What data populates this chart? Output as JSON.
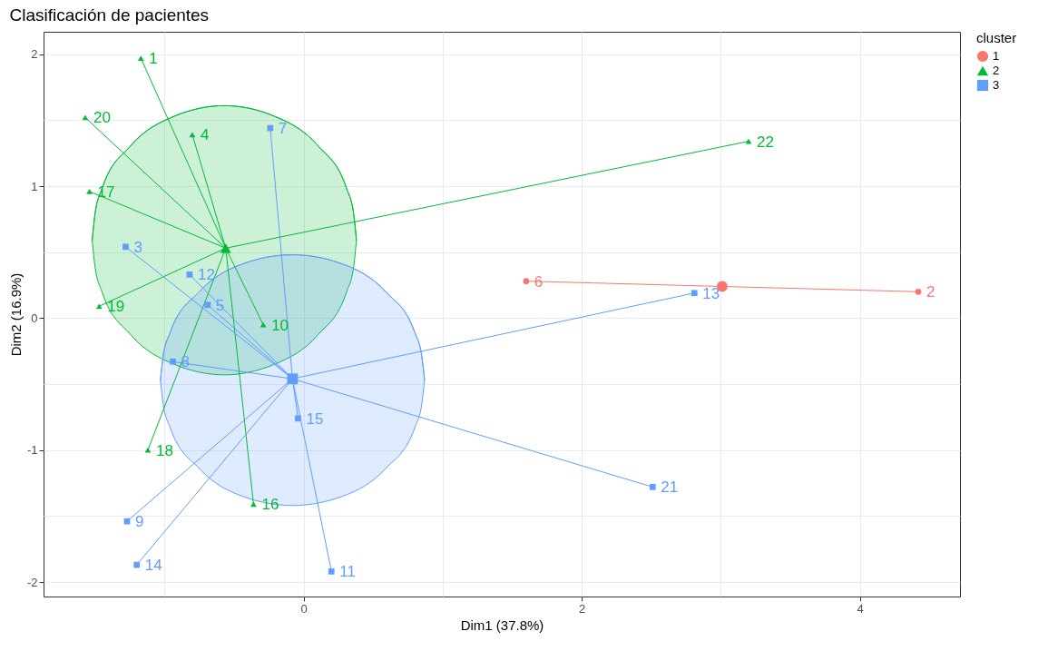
{
  "chart_data": {
    "type": "scatter",
    "title": "Clasificación de pacientes",
    "xlabel": "Dim1 (37.8%)",
    "ylabel": "Dim2 (16.9%)",
    "legend_title": "cluster",
    "legend": "right",
    "grid": true,
    "xlim": [
      -1.87,
      4.72
    ],
    "ylim": [
      -2.11,
      2.17
    ],
    "xticks": [
      {
        "value": -1,
        "label": null
      },
      0,
      {
        "value": 1,
        "label": null
      },
      2,
      {
        "value": 3,
        "label": null
      },
      4
    ],
    "yticks": [
      -2,
      {
        "value": -1.5,
        "label": null
      },
      -1,
      {
        "value": -0.5,
        "label": null
      },
      0,
      {
        "value": 0.5,
        "label": null
      },
      1,
      {
        "value": 1.5,
        "label": null
      },
      2
    ],
    "series": [
      {
        "type": "line",
        "color": "#00ba38",
        "x": [
          -1.52,
          -1.5,
          -1.45,
          -1.24,
          -0.93,
          -0.57,
          -0.21,
          0.1,
          0.31,
          0.36,
          0.38
        ],
        "values": [
          0.59,
          0.79,
          0.98,
          1.31,
          1.53,
          1.61,
          1.53,
          1.31,
          0.98,
          0.79,
          0.59
        ],
        "upper": [
          0.59,
          0.79,
          0.98,
          1.31,
          1.53,
          1.61,
          1.53,
          1.31,
          0.98,
          0.79,
          0.59
        ],
        "lower": [
          0.59,
          0.39,
          0.2,
          -0.13,
          -0.35,
          -0.43,
          -0.35,
          -0.13,
          0.2,
          0.39,
          0.59
        ]
      },
      {
        "type": "line",
        "color": "#619cff",
        "x": [
          -1.03,
          -1.01,
          -0.96,
          -0.75,
          -0.44,
          -0.08,
          0.28,
          0.59,
          0.8,
          0.85,
          0.87
        ],
        "values": [
          -0.47,
          -0.29,
          -0.11,
          0.2,
          0.41,
          0.48,
          0.41,
          0.2,
          -0.11,
          -0.29,
          -0.47
        ],
        "upper": [
          -0.47,
          -0.29,
          -0.11,
          0.2,
          0.41,
          0.48,
          0.41,
          0.2,
          -0.11,
          -0.29,
          -0.47
        ],
        "lower": [
          -0.47,
          -0.65,
          -0.83,
          -1.14,
          -1.35,
          -1.42,
          -1.35,
          -1.14,
          -0.83,
          -0.65,
          -0.47
        ]
      },
      {
        "type": "line",
        "color": "#f8766d",
        "x": [
          3.01,
          1.6
        ],
        "values": [
          0.24,
          0.28
        ]
      },
      {
        "type": "line",
        "color": "#f8766d",
        "x": [
          3.01,
          4.42
        ],
        "values": [
          0.24,
          0.2
        ]
      },
      {
        "type": "line",
        "color": "#00ba38",
        "x": [
          -0.56,
          -1.17
        ],
        "values": [
          0.53,
          1.97
        ]
      },
      {
        "type": "line",
        "color": "#00ba38",
        "x": [
          -0.56,
          -1.57
        ],
        "values": [
          0.53,
          1.52
        ]
      },
      {
        "type": "line",
        "color": "#00ba38",
        "x": [
          -0.56,
          -0.8
        ],
        "values": [
          0.53,
          1.39
        ]
      },
      {
        "type": "line",
        "color": "#00ba38",
        "x": [
          -0.56,
          3.2
        ],
        "values": [
          0.53,
          1.34
        ]
      },
      {
        "type": "line",
        "color": "#00ba38",
        "x": [
          -0.56,
          -1.54
        ],
        "values": [
          0.53,
          0.96
        ]
      },
      {
        "type": "line",
        "color": "#00ba38",
        "x": [
          -0.56,
          -1.47
        ],
        "values": [
          0.53,
          0.09
        ]
      },
      {
        "type": "line",
        "color": "#00ba38",
        "x": [
          -0.56,
          -0.29
        ],
        "values": [
          0.53,
          -0.05
        ]
      },
      {
        "type": "line",
        "color": "#00ba38",
        "x": [
          -0.56,
          -1.12
        ],
        "values": [
          0.53,
          -1.0
        ]
      },
      {
        "type": "line",
        "color": "#00ba38",
        "x": [
          -0.56,
          -0.36
        ],
        "values": [
          0.53,
          -1.41
        ]
      },
      {
        "type": "line",
        "color": "#619cff",
        "x": [
          -0.08,
          -0.24
        ],
        "values": [
          -0.46,
          1.44
        ]
      },
      {
        "type": "line",
        "color": "#619cff",
        "x": [
          -0.08,
          -1.28
        ],
        "values": [
          -0.46,
          0.54
        ]
      },
      {
        "type": "line",
        "color": "#619cff",
        "x": [
          -0.08,
          -0.82
        ],
        "values": [
          -0.46,
          0.33
        ]
      },
      {
        "type": "line",
        "color": "#619cff",
        "x": [
          -0.08,
          -0.69
        ],
        "values": [
          -0.46,
          0.1
        ]
      },
      {
        "type": "line",
        "color": "#619cff",
        "x": [
          -0.08,
          -0.94
        ],
        "values": [
          -0.46,
          -0.33
        ]
      },
      {
        "type": "line",
        "color": "#619cff",
        "x": [
          -0.08,
          2.81
        ],
        "values": [
          -0.46,
          0.19
        ]
      },
      {
        "type": "line",
        "color": "#619cff",
        "x": [
          -0.08,
          -0.04
        ],
        "values": [
          -0.46,
          -0.76
        ]
      },
      {
        "type": "line",
        "color": "#619cff",
        "x": [
          -0.08,
          2.51
        ],
        "values": [
          -0.46,
          -1.28
        ]
      },
      {
        "type": "line",
        "color": "#619cff",
        "x": [
          -0.08,
          -1.27
        ],
        "values": [
          -0.46,
          -1.54
        ]
      },
      {
        "type": "line",
        "color": "#619cff",
        "x": [
          -0.08,
          -1.2
        ],
        "values": [
          -0.46,
          -1.87
        ]
      },
      {
        "type": "line",
        "color": "#619cff",
        "x": [
          -0.08,
          0.2
        ],
        "values": [
          -0.46,
          -1.92
        ]
      },
      {
        "name": "1",
        "color": "#f8766d",
        "marker": "circle",
        "x": [
          1.6,
          4.42
        ],
        "values": [
          0.28,
          0.2
        ]
      },
      {
        "name": "2",
        "color": "#00ba38",
        "marker": "triangle",
        "x": [
          -1.17,
          -1.57,
          -0.8,
          3.2,
          -1.54,
          -1.47,
          -0.29,
          -1.12,
          -0.36
        ],
        "values": [
          1.97,
          1.52,
          1.39,
          1.34,
          0.96,
          0.09,
          -0.05,
          -1.0,
          -1.41
        ]
      },
      {
        "name": "3",
        "color": "#619cff",
        "marker": "square",
        "x": [
          -0.24,
          -1.28,
          -0.82,
          -0.69,
          -0.94,
          2.81,
          -0.04,
          2.51,
          -1.27,
          -1.2,
          0.2
        ],
        "values": [
          1.44,
          0.54,
          0.33,
          0.1,
          -0.33,
          0.19,
          -0.76,
          -1.28,
          -1.54,
          -1.87,
          -1.92
        ]
      },
      {
        "color": "#f8766d",
        "marker": "circle",
        "x": [
          3.01
        ],
        "values": [
          0.24
        ]
      },
      {
        "color": "#00ba38",
        "marker": "triangle",
        "x": [
          -0.56
        ],
        "values": [
          0.53
        ]
      },
      {
        "color": "#619cff",
        "marker": "square",
        "x": [
          -0.08
        ],
        "values": [
          -0.46
        ]
      }
    ],
    "annotations": [
      {
        "text": "6",
        "x": 1.6,
        "y": 0.28
      },
      {
        "text": "2",
        "x": 4.42,
        "y": 0.2
      },
      {
        "text": "1",
        "x": -1.17,
        "y": 1.97
      },
      {
        "text": "20",
        "x": -1.57,
        "y": 1.52
      },
      {
        "text": "4",
        "x": -0.8,
        "y": 1.39
      },
      {
        "text": "22",
        "x": 3.2,
        "y": 1.34
      },
      {
        "text": "17",
        "x": -1.54,
        "y": 0.96
      },
      {
        "text": "19",
        "x": -1.47,
        "y": 0.09
      },
      {
        "text": "10",
        "x": -0.29,
        "y": -0.05
      },
      {
        "text": "18",
        "x": -1.12,
        "y": -1.0
      },
      {
        "text": "16",
        "x": -0.36,
        "y": -1.41
      },
      {
        "text": "7",
        "x": -0.24,
        "y": 1.44
      },
      {
        "text": "3",
        "x": -1.28,
        "y": 0.54
      },
      {
        "text": "12",
        "x": -0.82,
        "y": 0.33
      },
      {
        "text": "5",
        "x": -0.69,
        "y": 0.1
      },
      {
        "text": "8",
        "x": -0.94,
        "y": -0.33
      },
      {
        "text": "13",
        "x": 2.81,
        "y": 0.19
      },
      {
        "text": "15",
        "x": -0.04,
        "y": -0.76
      },
      {
        "text": "21",
        "x": 2.51,
        "y": -1.28
      },
      {
        "text": "9",
        "x": -1.27,
        "y": -1.54
      },
      {
        "text": "14",
        "x": -1.2,
        "y": -1.87
      },
      {
        "text": "11",
        "x": 0.2,
        "y": -1.92
      }
    ]
  }
}
